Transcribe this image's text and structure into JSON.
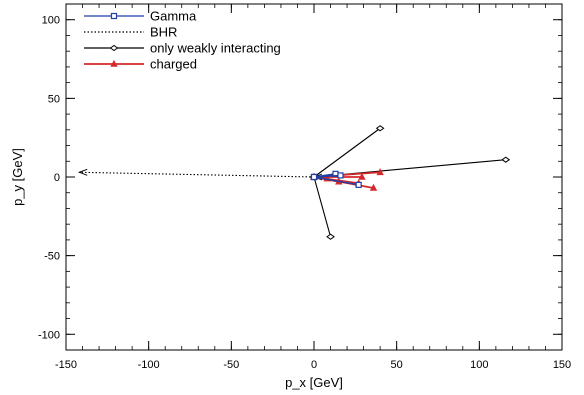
{
  "chart_data": {
    "type": "scatter",
    "title": "",
    "xlabel": "p_x [GeV]",
    "ylabel": "p_y [GeV]",
    "xlim": [
      -150,
      150
    ],
    "ylim": [
      -110,
      110
    ],
    "x_ticks": [
      -150,
      -100,
      -50,
      0,
      50,
      100,
      150
    ],
    "y_ticks": [
      -100,
      -50,
      0,
      50,
      100
    ],
    "x_minor_step": 10,
    "y_minor_step": 10,
    "grid": false,
    "legend_position": "top-left",
    "series": [
      {
        "name": "Gamma",
        "color": "#1f3fa8",
        "marker": "open-square",
        "line_style": "solid",
        "segments": [
          [
            [
              0,
              0
            ],
            [
              13,
              2
            ]
          ],
          [
            [
              0,
              0
            ],
            [
              16,
              1
            ]
          ],
          [
            [
              0,
              0
            ],
            [
              27,
              -5
            ]
          ]
        ]
      },
      {
        "name": "BHR",
        "color": "#000000",
        "marker": "arrow",
        "line_style": "dotted",
        "segments": [
          [
            [
              0,
              0
            ],
            [
              -142,
              3
            ]
          ]
        ]
      },
      {
        "name": "only weakly interacting",
        "color": "#000000",
        "marker": "open-diamond",
        "line_style": "solid",
        "segments": [
          [
            [
              0,
              0
            ],
            [
              40,
              31
            ]
          ],
          [
            [
              0,
              0
            ],
            [
              116,
              11
            ]
          ],
          [
            [
              0,
              0
            ],
            [
              10,
              -38
            ]
          ]
        ]
      },
      {
        "name": "charged",
        "color": "#d42a2a",
        "marker": "filled-triangle",
        "line_style": "solid",
        "segments": [
          [
            [
              0,
              0
            ],
            [
              40,
              3
            ]
          ],
          [
            [
              0,
              0
            ],
            [
              29,
              0
            ]
          ],
          [
            [
              0,
              0
            ],
            [
              36,
              -7
            ]
          ],
          [
            [
              0,
              0
            ],
            [
              15,
              -3
            ]
          ],
          [
            [
              0,
              0
            ],
            [
              27,
              -4
            ]
          ],
          [
            [
              0,
              0
            ],
            [
              8,
              -1
            ]
          ]
        ]
      }
    ]
  }
}
